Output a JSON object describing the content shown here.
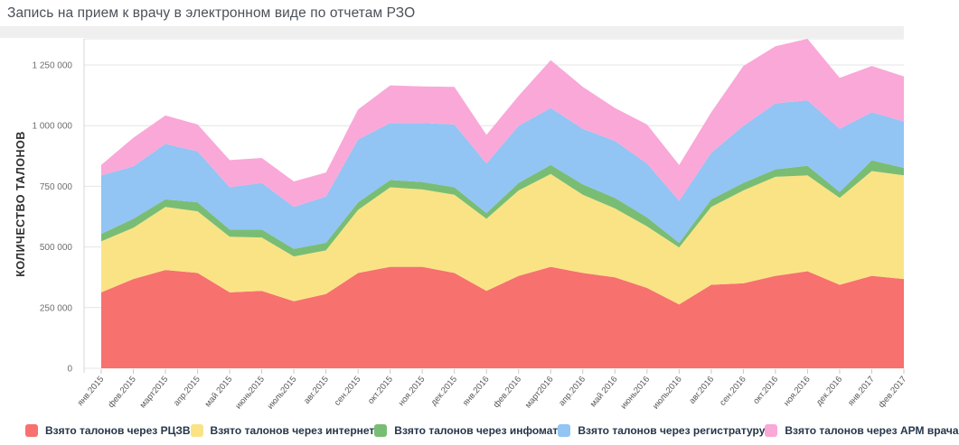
{
  "title": "Запись на прием к врачу в электронном виде по отчетам РЗО",
  "chart_data": {
    "type": "area",
    "stacked": true,
    "title": "Запись на прием к врачу в электронном виде по отчетам РЗО",
    "ylabel": "КОЛИЧЕСТВО ТАЛОНОВ",
    "xlabel": "",
    "ylim": [
      0,
      1366000
    ],
    "grid": "horizontal",
    "legend_position": "bottom",
    "yticks": [
      0,
      250000,
      500000,
      750000,
      1000000,
      1250000
    ],
    "ytick_labels": [
      "0",
      "250 000",
      "500 000",
      "750 000",
      "1 000 000",
      "1 250 000"
    ],
    "categories": [
      "янв.2015",
      "фев.2015",
      "март2015",
      "апр.2015",
      "май 2015",
      "июнь2015",
      "июль2015",
      "авг.2015",
      "сен.2015",
      "окт.2015",
      "ноя.2015",
      "дек.2015",
      "янв.2016",
      "фев.2016",
      "март2016",
      "апр.2016",
      "май 2016",
      "июнь2016",
      "июль2016",
      "авг.2016",
      "сен.2016",
      "окт.2016",
      "ноя.2016",
      "дек.2016",
      "янв.2017",
      "фев.2017"
    ],
    "series": [
      {
        "name": "Взято талонов через РЦЗВ",
        "color": "#F7716F",
        "values": [
          313000,
          368000,
          405000,
          393000,
          313000,
          319000,
          276000,
          306000,
          393000,
          418000,
          418000,
          393000,
          319000,
          381000,
          418000,
          393000,
          375000,
          331000,
          263000,
          344000,
          350000,
          381000,
          400000,
          344000,
          381000,
          368000
        ]
      },
      {
        "name": "Взято талонов через интернет",
        "color": "#FAE385",
        "values": [
          210000,
          211000,
          260000,
          254000,
          229000,
          220000,
          185000,
          180000,
          260000,
          328000,
          319000,
          322000,
          297000,
          352000,
          383000,
          322000,
          284000,
          254000,
          235000,
          321000,
          383000,
          408000,
          395000,
          358000,
          432000,
          427000
        ]
      },
      {
        "name": "Взято талонов через инфомат",
        "color": "#79BD74",
        "values": [
          31000,
          37000,
          31000,
          37000,
          30000,
          33000,
          31000,
          31000,
          31000,
          30000,
          31000,
          31000,
          24000,
          31000,
          37000,
          43000,
          43000,
          37000,
          19000,
          31000,
          31000,
          31000,
          40000,
          25000,
          44000,
          31000
        ]
      },
      {
        "name": "Взято талонов через регистратуру",
        "color": "#92C4F4",
        "values": [
          241000,
          216000,
          229000,
          210000,
          174000,
          192000,
          173000,
          191000,
          259000,
          235000,
          243000,
          259000,
          204000,
          235000,
          235000,
          229000,
          235000,
          222000,
          173000,
          192000,
          235000,
          272000,
          269000,
          260000,
          198000,
          191000
        ]
      },
      {
        "name": "Взято талонов через АРМ врача",
        "color": "#F9A8D8",
        "values": [
          43000,
          118000,
          117000,
          111000,
          112000,
          103000,
          105000,
          99000,
          124000,
          155000,
          151000,
          155000,
          118000,
          124000,
          197000,
          173000,
          136000,
          161000,
          148000,
          167000,
          247000,
          235000,
          254000,
          210000,
          191000,
          186000
        ]
      }
    ],
    "colors": {
      "grid": "#e4e4e4",
      "axis_line": "#d4d4d4",
      "tick": "#c9c9c9",
      "x_label": "#585858",
      "y_label": "#6e6e6e",
      "y_title": "#2e2e2e"
    }
  }
}
